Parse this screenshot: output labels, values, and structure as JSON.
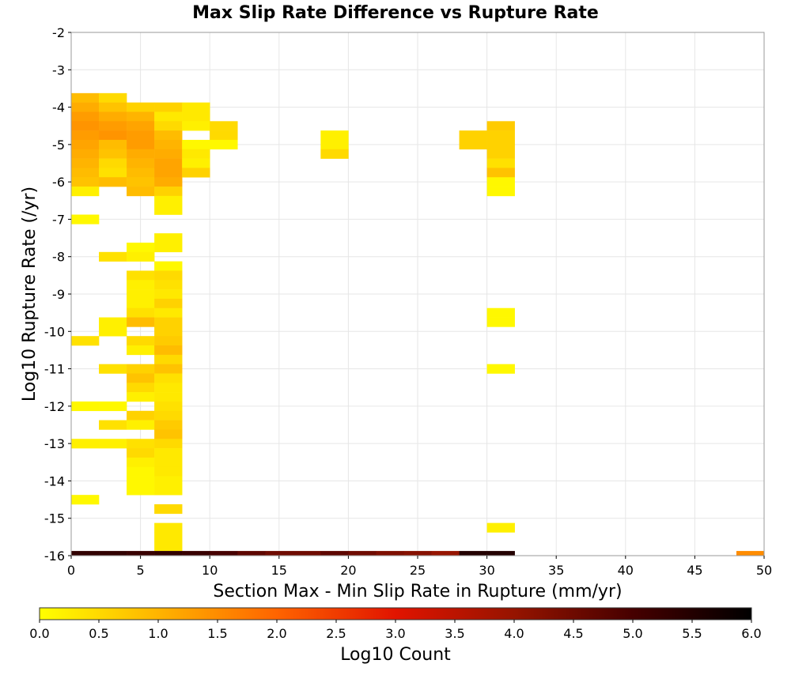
{
  "chart_data": {
    "type": "heatmap",
    "title": "Max Slip Rate Difference vs Rupture Rate",
    "xlabel": "Section Max - Min Slip Rate in Rupture (mm/yr)",
    "ylabel": "Log10 Rupture Rate (/yr)",
    "xlim": [
      0,
      50
    ],
    "ylim": [
      -16,
      -2
    ],
    "x_ticks": [
      "0",
      "5",
      "10",
      "15",
      "20",
      "25",
      "30",
      "35",
      "40",
      "45",
      "50"
    ],
    "y_ticks": [
      "-2",
      "-3",
      "-4",
      "-5",
      "-6",
      "-7",
      "-8",
      "-9",
      "-10",
      "-11",
      "-12",
      "-13",
      "-14",
      "-15",
      "-16"
    ],
    "grid": true,
    "colorbar": {
      "label": "Log10 Count",
      "range": [
        0,
        6
      ],
      "ticks": [
        "0.0",
        "0.5",
        "1.0",
        "1.5",
        "2.0",
        "2.5",
        "3.0",
        "3.5",
        "4.0",
        "4.5",
        "5.0",
        "5.5",
        "6.0"
      ],
      "colors": [
        "#ffff00",
        "#ffb400",
        "#ff6400",
        "#e11400",
        "#961400",
        "#460000",
        "#000000"
      ]
    },
    "x_bin_width": 2,
    "y_bin_width": 0.25,
    "cells": [
      {
        "x": 0,
        "y": -3.75,
        "v": 0.9
      },
      {
        "x": 0,
        "y": -4.0,
        "v": 1.1
      },
      {
        "x": 0,
        "y": -4.25,
        "v": 1.3
      },
      {
        "x": 0,
        "y": -4.5,
        "v": 1.4
      },
      {
        "x": 0,
        "y": -4.75,
        "v": 1.3
      },
      {
        "x": 0,
        "y": -5.0,
        "v": 1.2
      },
      {
        "x": 0,
        "y": -5.25,
        "v": 1.1
      },
      {
        "x": 0,
        "y": -5.5,
        "v": 1.0
      },
      {
        "x": 0,
        "y": -5.75,
        "v": 0.9
      },
      {
        "x": 0,
        "y": -6.0,
        "v": 0.8
      },
      {
        "x": 0,
        "y": -6.25,
        "v": 0.2
      },
      {
        "x": 0,
        "y": -7.0,
        "v": 0.1
      },
      {
        "x": 0,
        "y": -10.25,
        "v": 0.4
      },
      {
        "x": 0,
        "y": -12.0,
        "v": 0.1
      },
      {
        "x": 0,
        "y": -13.0,
        "v": 0.2
      },
      {
        "x": 0,
        "y": -14.5,
        "v": 0.1
      },
      {
        "x": 2,
        "y": -3.75,
        "v": 0.5
      },
      {
        "x": 2,
        "y": -4.0,
        "v": 0.8
      },
      {
        "x": 2,
        "y": -4.25,
        "v": 1.1
      },
      {
        "x": 2,
        "y": -4.5,
        "v": 1.3
      },
      {
        "x": 2,
        "y": -4.75,
        "v": 1.4
      },
      {
        "x": 2,
        "y": -5.0,
        "v": 0.9
      },
      {
        "x": 2,
        "y": -5.25,
        "v": 0.8
      },
      {
        "x": 2,
        "y": -5.5,
        "v": 0.5
      },
      {
        "x": 2,
        "y": -5.75,
        "v": 0.4
      },
      {
        "x": 2,
        "y": -6.0,
        "v": 0.9
      },
      {
        "x": 2,
        "y": -8.0,
        "v": 0.4
      },
      {
        "x": 2,
        "y": -9.75,
        "v": 0.2
      },
      {
        "x": 2,
        "y": -10.0,
        "v": 0.2
      },
      {
        "x": 2,
        "y": -11.0,
        "v": 0.4
      },
      {
        "x": 2,
        "y": -12.0,
        "v": 0.1
      },
      {
        "x": 2,
        "y": -12.5,
        "v": 0.4
      },
      {
        "x": 2,
        "y": -13.0,
        "v": 0.2
      },
      {
        "x": 4,
        "y": -4.0,
        "v": 0.6
      },
      {
        "x": 4,
        "y": -4.25,
        "v": 1.0
      },
      {
        "x": 4,
        "y": -4.5,
        "v": 1.2
      },
      {
        "x": 4,
        "y": -4.75,
        "v": 1.3
      },
      {
        "x": 4,
        "y": -5.0,
        "v": 1.3
      },
      {
        "x": 4,
        "y": -5.25,
        "v": 1.1
      },
      {
        "x": 4,
        "y": -5.5,
        "v": 1.0
      },
      {
        "x": 4,
        "y": -5.75,
        "v": 0.9
      },
      {
        "x": 4,
        "y": -6.0,
        "v": 0.8
      },
      {
        "x": 4,
        "y": -6.25,
        "v": 0.9
      },
      {
        "x": 4,
        "y": -7.75,
        "v": 0.1
      },
      {
        "x": 4,
        "y": -8.0,
        "v": 0.2
      },
      {
        "x": 4,
        "y": -8.5,
        "v": 0.4
      },
      {
        "x": 4,
        "y": -8.75,
        "v": 0.2
      },
      {
        "x": 4,
        "y": -9.0,
        "v": 0.2
      },
      {
        "x": 4,
        "y": -9.25,
        "v": 0.2
      },
      {
        "x": 4,
        "y": -9.5,
        "v": 0.4
      },
      {
        "x": 4,
        "y": -9.75,
        "v": 0.9
      },
      {
        "x": 4,
        "y": -10.25,
        "v": 0.5
      },
      {
        "x": 4,
        "y": -10.5,
        "v": 0.2
      },
      {
        "x": 4,
        "y": -11.0,
        "v": 0.6
      },
      {
        "x": 4,
        "y": -11.25,
        "v": 0.8
      },
      {
        "x": 4,
        "y": -11.5,
        "v": 0.5
      },
      {
        "x": 4,
        "y": -11.75,
        "v": 0.2
      },
      {
        "x": 4,
        "y": -12.25,
        "v": 0.6
      },
      {
        "x": 4,
        "y": -12.5,
        "v": 0.2
      },
      {
        "x": 4,
        "y": -13.0,
        "v": 0.4
      },
      {
        "x": 4,
        "y": -13.25,
        "v": 0.5
      },
      {
        "x": 4,
        "y": -13.5,
        "v": 0.2
      },
      {
        "x": 4,
        "y": -13.75,
        "v": 0.1
      },
      {
        "x": 4,
        "y": -14.0,
        "v": 0.1
      },
      {
        "x": 4,
        "y": -14.25,
        "v": 0.1
      },
      {
        "x": 6,
        "y": -4.0,
        "v": 0.6
      },
      {
        "x": 6,
        "y": -4.25,
        "v": 0.3
      },
      {
        "x": 6,
        "y": -4.5,
        "v": 0.5
      },
      {
        "x": 6,
        "y": -4.75,
        "v": 0.9
      },
      {
        "x": 6,
        "y": -5.0,
        "v": 1.0
      },
      {
        "x": 6,
        "y": -5.25,
        "v": 1.1
      },
      {
        "x": 6,
        "y": -5.5,
        "v": 1.2
      },
      {
        "x": 6,
        "y": -5.75,
        "v": 1.2
      },
      {
        "x": 6,
        "y": -6.0,
        "v": 1.1
      },
      {
        "x": 6,
        "y": -6.25,
        "v": 0.6
      },
      {
        "x": 6,
        "y": -6.5,
        "v": 0.2
      },
      {
        "x": 6,
        "y": -6.75,
        "v": 0.2
      },
      {
        "x": 6,
        "y": -7.5,
        "v": 0.2
      },
      {
        "x": 6,
        "y": -7.75,
        "v": 0.2
      },
      {
        "x": 6,
        "y": -8.25,
        "v": 0.1
      },
      {
        "x": 6,
        "y": -8.5,
        "v": 0.5
      },
      {
        "x": 6,
        "y": -8.75,
        "v": 0.4
      },
      {
        "x": 6,
        "y": -9.0,
        "v": 0.3
      },
      {
        "x": 6,
        "y": -9.25,
        "v": 0.6
      },
      {
        "x": 6,
        "y": -9.5,
        "v": 0.3
      },
      {
        "x": 6,
        "y": -9.75,
        "v": 0.6
      },
      {
        "x": 6,
        "y": -10.0,
        "v": 0.6
      },
      {
        "x": 6,
        "y": -10.25,
        "v": 0.7
      },
      {
        "x": 6,
        "y": -10.5,
        "v": 0.9
      },
      {
        "x": 6,
        "y": -10.75,
        "v": 0.5
      },
      {
        "x": 6,
        "y": -11.0,
        "v": 0.8
      },
      {
        "x": 6,
        "y": -11.25,
        "v": 0.4
      },
      {
        "x": 6,
        "y": -11.5,
        "v": 0.3
      },
      {
        "x": 6,
        "y": -11.75,
        "v": 0.3
      },
      {
        "x": 6,
        "y": -12.0,
        "v": 0.4
      },
      {
        "x": 6,
        "y": -12.25,
        "v": 0.5
      },
      {
        "x": 6,
        "y": -12.5,
        "v": 0.7
      },
      {
        "x": 6,
        "y": -12.75,
        "v": 0.8
      },
      {
        "x": 6,
        "y": -13.0,
        "v": 0.5
      },
      {
        "x": 6,
        "y": -13.25,
        "v": 0.3
      },
      {
        "x": 6,
        "y": -13.5,
        "v": 0.3
      },
      {
        "x": 6,
        "y": -13.75,
        "v": 0.3
      },
      {
        "x": 6,
        "y": -14.0,
        "v": 0.2
      },
      {
        "x": 6,
        "y": -14.25,
        "v": 0.2
      },
      {
        "x": 6,
        "y": -14.75,
        "v": 0.5
      },
      {
        "x": 6,
        "y": -15.25,
        "v": 0.3
      },
      {
        "x": 6,
        "y": -15.5,
        "v": 0.3
      },
      {
        "x": 6,
        "y": -15.75,
        "v": 0.3
      },
      {
        "x": 8,
        "y": -4.0,
        "v": 0.3
      },
      {
        "x": 8,
        "y": -4.25,
        "v": 0.3
      },
      {
        "x": 8,
        "y": -4.5,
        "v": 0.2
      },
      {
        "x": 8,
        "y": -5.0,
        "v": 0.1
      },
      {
        "x": 8,
        "y": -5.25,
        "v": 0.3
      },
      {
        "x": 8,
        "y": -5.5,
        "v": 0.2
      },
      {
        "x": 8,
        "y": -5.75,
        "v": 0.6
      },
      {
        "x": 10,
        "y": -4.5,
        "v": 0.5
      },
      {
        "x": 10,
        "y": -4.75,
        "v": 0.5
      },
      {
        "x": 10,
        "y": -5.0,
        "v": 0.1
      },
      {
        "x": 18,
        "y": -4.75,
        "v": 0.2
      },
      {
        "x": 18,
        "y": -5.0,
        "v": 0.2
      },
      {
        "x": 18,
        "y": -5.25,
        "v": 0.5
      },
      {
        "x": 28,
        "y": -4.75,
        "v": 0.6
      },
      {
        "x": 28,
        "y": -5.0,
        "v": 0.6
      },
      {
        "x": 30,
        "y": -4.5,
        "v": 0.7
      },
      {
        "x": 30,
        "y": -4.75,
        "v": 0.6
      },
      {
        "x": 30,
        "y": -5.0,
        "v": 0.6
      },
      {
        "x": 30,
        "y": -5.25,
        "v": 0.6
      },
      {
        "x": 30,
        "y": -5.5,
        "v": 0.4
      },
      {
        "x": 30,
        "y": -5.75,
        "v": 0.8
      },
      {
        "x": 30,
        "y": -6.0,
        "v": 0.1
      },
      {
        "x": 30,
        "y": -6.25,
        "v": 0.1
      },
      {
        "x": 30,
        "y": -9.5,
        "v": 0.1
      },
      {
        "x": 30,
        "y": -9.75,
        "v": 0.1
      },
      {
        "x": 30,
        "y": -11.0,
        "v": 0.1
      },
      {
        "x": 30,
        "y": -15.25,
        "v": 0.2
      },
      {
        "x": 0,
        "y": -16.0,
        "v": 5.3
      },
      {
        "x": 2,
        "y": -16.0,
        "v": 5.3
      },
      {
        "x": 4,
        "y": -16.0,
        "v": 5.2
      },
      {
        "x": 6,
        "y": -16.0,
        "v": 5.3
      },
      {
        "x": 8,
        "y": -16.0,
        "v": 5.2
      },
      {
        "x": 10,
        "y": -16.0,
        "v": 5.0
      },
      {
        "x": 12,
        "y": -16.0,
        "v": 4.7
      },
      {
        "x": 14,
        "y": -16.0,
        "v": 4.5
      },
      {
        "x": 16,
        "y": -16.0,
        "v": 4.5
      },
      {
        "x": 18,
        "y": -16.0,
        "v": 4.7
      },
      {
        "x": 20,
        "y": -16.0,
        "v": 4.5
      },
      {
        "x": 22,
        "y": -16.0,
        "v": 4.3
      },
      {
        "x": 24,
        "y": -16.0,
        "v": 4.2
      },
      {
        "x": 26,
        "y": -16.0,
        "v": 4.0
      },
      {
        "x": 28,
        "y": -16.0,
        "v": 5.5
      },
      {
        "x": 30,
        "y": -16.0,
        "v": 5.5
      },
      {
        "x": 48,
        "y": -16.0,
        "v": 1.5
      }
    ]
  }
}
